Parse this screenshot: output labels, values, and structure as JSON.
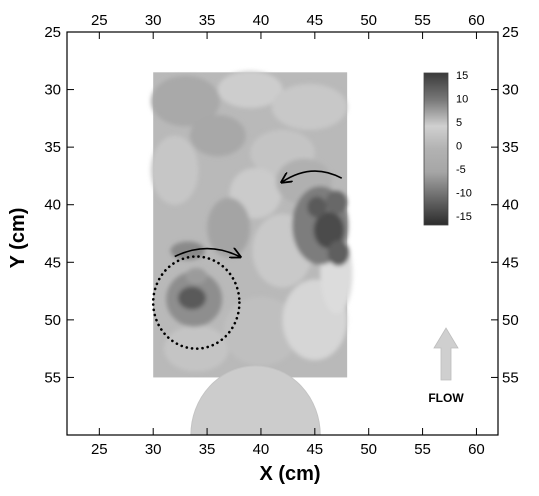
{
  "chart_data": {
    "type": "heatmap",
    "title": "",
    "xlabel": "X (cm)",
    "ylabel": "Y (cm)",
    "xlim": [
      22,
      62
    ],
    "ylim": [
      25,
      60
    ],
    "y_inverted": true,
    "x_ticks": [
      25,
      30,
      35,
      40,
      45,
      50,
      55,
      60
    ],
    "y_ticks": [
      25,
      30,
      35,
      40,
      45,
      50,
      55
    ],
    "mirrored_axes": "top-right",
    "grid": false,
    "field_extent": {
      "x": [
        30,
        48
      ],
      "y": [
        28.5,
        55
      ]
    },
    "colorbar": {
      "placement": "top-right",
      "range": [
        -15,
        15
      ],
      "ticks": [
        15,
        10,
        5,
        0,
        -5,
        -10,
        -15
      ],
      "tick_labels": [
        "15",
        "10",
        "5",
        "0",
        "-5",
        "-10",
        "-15"
      ]
    },
    "features": [
      {
        "kind": "vortex-region",
        "shape": "dotted-circle",
        "center": [
          34.0,
          48.5
        ],
        "radius": 4.0
      },
      {
        "kind": "strong-negative-patch",
        "center": [
          33.5,
          48.2
        ],
        "value": -10
      },
      {
        "kind": "strong-negative-patch",
        "center": [
          46.0,
          42.0
        ],
        "value": -12
      },
      {
        "kind": "curved-arrow",
        "direction": "clockwise",
        "from": [
          32.0,
          44.5
        ],
        "to": [
          38.0,
          44.5
        ]
      },
      {
        "kind": "curved-arrow",
        "direction": "counter-clockwise",
        "from": [
          47.5,
          37.7
        ],
        "to": [
          42.0,
          38.0
        ]
      },
      {
        "kind": "obstacle",
        "shape": "semicircle",
        "center": [
          39.5,
          60.0
        ],
        "radius": 6.0
      }
    ],
    "annotations": [
      {
        "text": "FLOW",
        "kind": "arrow-up",
        "position": [
          55.5,
          53.0
        ]
      }
    ]
  }
}
